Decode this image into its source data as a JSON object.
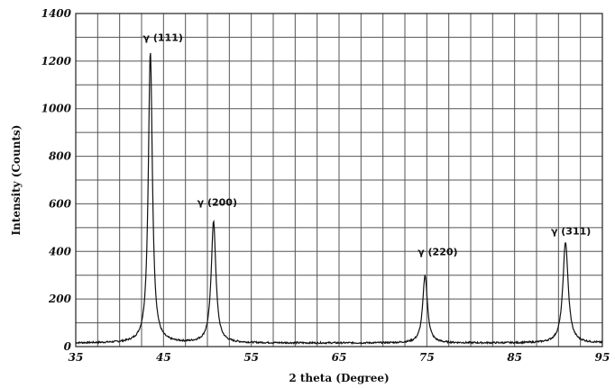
{
  "chart_data": {
    "type": "line",
    "xlabel": "2 theta (Degree)",
    "ylabel": "Intensity (Counts)",
    "xlim": [
      35,
      95
    ],
    "ylim": [
      0,
      1400
    ],
    "x_ticks": [
      35,
      45,
      55,
      65,
      75,
      85,
      95
    ],
    "x_tick_labels": [
      "35",
      "45",
      "55",
      "65",
      "75",
      "85",
      "95"
    ],
    "y_ticks": [
      0,
      200,
      400,
      600,
      800,
      1000,
      1200,
      1400
    ],
    "y_tick_labels": [
      "0",
      "200",
      "400",
      "600",
      "800",
      "1000",
      "1200",
      "1400"
    ],
    "grid": true,
    "baseline": 15,
    "series": [
      {
        "peaks": [
          {
            "x": 43.5,
            "y": 1240,
            "label": "γ (111)"
          },
          {
            "x": 50.7,
            "y": 525,
            "label": "γ (200)"
          },
          {
            "x": 74.8,
            "y": 300,
            "label": "γ (220)"
          },
          {
            "x": 90.8,
            "y": 440,
            "label": "γ (311)"
          }
        ]
      }
    ]
  }
}
